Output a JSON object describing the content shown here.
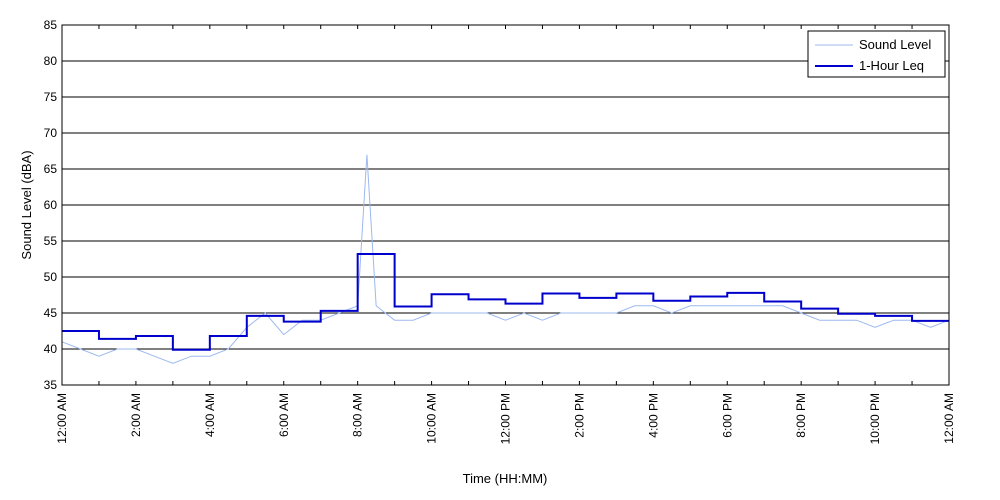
{
  "chart_data": {
    "type": "line",
    "title": "",
    "xlabel": "Time (HH:MM)",
    "ylabel": "Sound Level (dBA)",
    "ylim": [
      35,
      85
    ],
    "xlim": [
      0,
      24
    ],
    "grid": "horizontal",
    "legend_position": "top-right",
    "yticks": [
      35,
      40,
      45,
      50,
      55,
      60,
      65,
      70,
      75,
      80,
      85
    ],
    "xtick_hours": [
      0,
      2,
      4,
      6,
      8,
      10,
      12,
      14,
      16,
      18,
      20,
      22,
      24
    ],
    "xtick_labels": [
      "12:00 AM",
      "2:00 AM",
      "4:00 AM",
      "6:00 AM",
      "8:00 AM",
      "10:00 AM",
      "12:00 PM",
      "2:00 PM",
      "4:00 PM",
      "6:00 PM",
      "8:00 PM",
      "10:00 PM",
      "12:00 AM"
    ],
    "series": [
      {
        "name": "Sound Level",
        "color": "#9db9f0",
        "style": "thin-line",
        "x": [
          0.0,
          0.5,
          1.0,
          1.5,
          2.0,
          2.5,
          3.0,
          3.5,
          4.0,
          4.5,
          5.0,
          5.5,
          6.0,
          6.5,
          7.0,
          7.5,
          8.0,
          8.25,
          8.5,
          9.0,
          9.5,
          10.0,
          10.5,
          11.0,
          11.5,
          12.0,
          12.5,
          13.0,
          13.5,
          14.0,
          14.5,
          15.0,
          15.5,
          16.0,
          16.5,
          17.0,
          17.5,
          18.0,
          18.5,
          19.0,
          19.5,
          20.0,
          20.5,
          21.0,
          21.5,
          22.0,
          22.5,
          23.0,
          23.5,
          24.0
        ],
        "values": [
          41,
          40,
          39,
          40,
          40,
          39,
          38,
          39,
          39,
          40,
          43,
          45,
          42,
          44,
          44,
          45,
          46,
          67,
          46,
          44,
          44,
          45,
          45,
          45,
          45,
          44,
          45,
          44,
          45,
          45,
          45,
          45,
          46,
          46,
          45,
          46,
          46,
          46,
          46,
          46,
          46,
          45,
          44,
          44,
          44,
          43,
          44,
          44,
          43,
          44
        ]
      },
      {
        "name": "1-Hour Leq",
        "color": "#0000cc",
        "style": "step",
        "x": [
          0,
          1,
          2,
          3,
          4,
          5,
          6,
          7,
          8,
          9,
          10,
          11,
          12,
          13,
          14,
          15,
          16,
          17,
          18,
          19,
          20,
          21,
          22,
          23
        ],
        "values": [
          42.5,
          41.4,
          41.8,
          39.9,
          41.8,
          44.6,
          43.8,
          45.3,
          53.2,
          45.9,
          47.6,
          46.9,
          46.3,
          47.7,
          47.1,
          47.7,
          46.7,
          47.3,
          47.8,
          46.6,
          45.6,
          44.9,
          44.6,
          43.9
        ]
      }
    ]
  }
}
